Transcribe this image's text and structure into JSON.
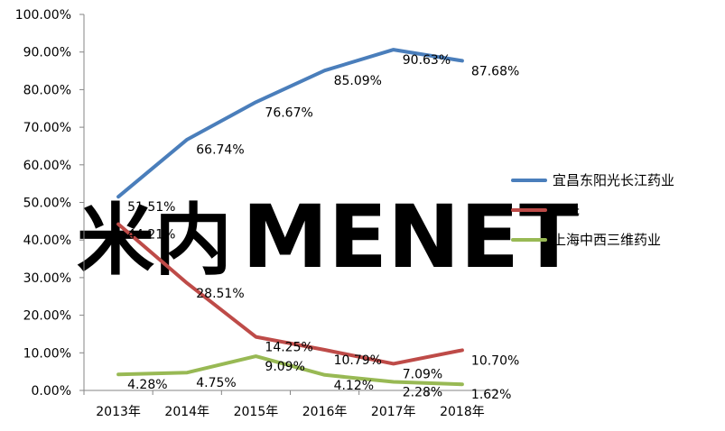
{
  "watermark": {
    "logo_text": "MENET",
    "logo_mark": "米内",
    "color_main": "#f9d7b5",
    "color_mark": "#cfe3f0"
  },
  "chart_data": {
    "type": "line",
    "title": "",
    "xlabel": "",
    "ylabel": "",
    "categories": [
      "2013年",
      "2014年",
      "2015年",
      "2016年",
      "2017年",
      "2018年"
    ],
    "ylim": [
      0,
      100
    ],
    "yticks": [
      "0.00%",
      "10.00%",
      "20.00%",
      "30.00%",
      "40.00%",
      "50.00%",
      "60.00%",
      "70.00%",
      "80.00%",
      "90.00%",
      "100.00%"
    ],
    "grid": false,
    "legend_position": "right",
    "series": [
      {
        "name": "宜昌东阳光长江药业",
        "color": "#4a7ebb",
        "values": [
          51.51,
          66.74,
          76.67,
          85.09,
          90.63,
          87.68
        ],
        "labels": [
          "51.51%",
          "66.74%",
          "76.67%",
          "85.09%",
          "90.63%",
          "87.68%"
        ]
      },
      {
        "name": "罗氏",
        "color": "#be4b48",
        "values": [
          44.21,
          28.51,
          14.25,
          10.79,
          7.09,
          10.7
        ],
        "labels": [
          "44.21%",
          "28.51%",
          "14.25%",
          "10.79%",
          "7.09%",
          "10.70%"
        ]
      },
      {
        "name": "上海中西三维药业",
        "color": "#98b954",
        "values": [
          4.28,
          4.75,
          9.09,
          4.12,
          2.28,
          1.62
        ],
        "labels": [
          "4.28%",
          "4.75%",
          "9.09%",
          "4.12%",
          "2.28%",
          "1.62%"
        ]
      }
    ]
  }
}
